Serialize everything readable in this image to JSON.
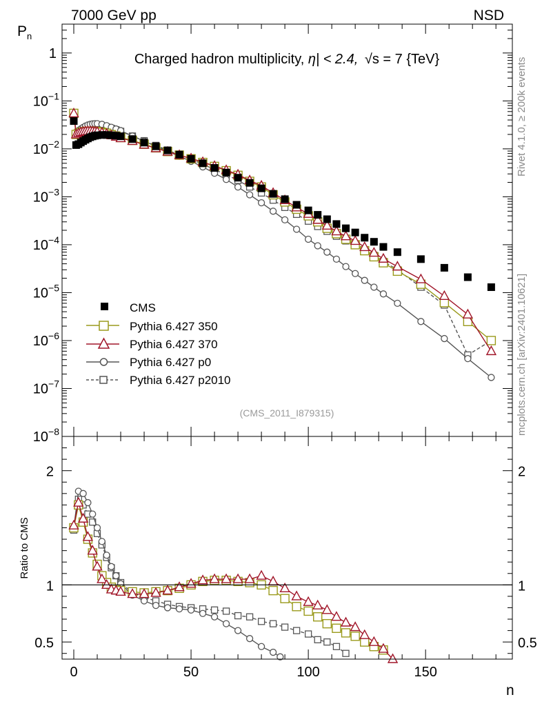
{
  "header": {
    "left": "7000 GeV pp",
    "right": "NSD"
  },
  "side_labels": {
    "rivet": "Rivet 4.1.0, ≥ 200k events",
    "mcplots": "mcplots.cern.ch [arXiv:2401.10621]"
  },
  "chart_data": [
    {
      "type": "scatter",
      "panel": "main",
      "title": "Charged hadron multiplicity, |η| < 2.4, √s = 7 {TeV}",
      "title_parts": [
        "Charged hadron multiplicity, ",
        "η| < 2.4, ",
        "s = 7 {TeV}"
      ],
      "ylabel": "P",
      "ylabel_sub": "n",
      "xlabel": "",
      "yscale": "log",
      "ylim": [
        1e-08,
        4
      ],
      "xlim": [
        -5,
        187
      ],
      "y_ticks": [
        {
          "value": 1,
          "label": "1"
        },
        {
          "value": 0.1,
          "base": "10",
          "exp": "−1"
        },
        {
          "value": 0.01,
          "base": "10",
          "exp": "−2"
        },
        {
          "value": 0.001,
          "base": "10",
          "exp": "−3"
        },
        {
          "value": 0.0001,
          "base": "10",
          "exp": "−4"
        },
        {
          "value": 1e-05,
          "base": "10",
          "exp": "−5"
        },
        {
          "value": 1e-06,
          "base": "10",
          "exp": "−6"
        },
        {
          "value": 1e-07,
          "base": "10",
          "exp": "−7"
        },
        {
          "value": 1e-08,
          "base": "10",
          "exp": "−8"
        }
      ],
      "watermark": "(CMS_2011_I879315)",
      "legend": [
        "CMS",
        "Pythia 6.427 350",
        "Pythia 6.427 370",
        "Pythia 6.427 p0",
        "Pythia 6.427 p2010"
      ],
      "series": [
        {
          "name": "CMS",
          "style": "data",
          "color": "#000000",
          "x": [
            0,
            1,
            2,
            3,
            4,
            5,
            6,
            7,
            8,
            9,
            10,
            12,
            14,
            16,
            18,
            20,
            25,
            30,
            35,
            40,
            45,
            50,
            55,
            60,
            65,
            70,
            75,
            80,
            85,
            90,
            95,
            100,
            104,
            108,
            112,
            116,
            120,
            124,
            128,
            132,
            138,
            148,
            158,
            168,
            178
          ],
          "y": [
            0.038,
            0.012,
            0.0125,
            0.0135,
            0.0145,
            0.0155,
            0.0165,
            0.0175,
            0.0182,
            0.0188,
            0.0192,
            0.0195,
            0.0195,
            0.0192,
            0.0188,
            0.0183,
            0.016,
            0.0135,
            0.0113,
            0.0093,
            0.0076,
            0.0062,
            0.005,
            0.004,
            0.0032,
            0.0025,
            0.00195,
            0.0015,
            0.00115,
            0.00089,
            0.00068,
            0.00052,
            0.00042,
            0.00034,
            0.00027,
            0.00022,
            0.00018,
            0.00014,
            0.000115,
            9e-05,
            7e-05,
            5e-05,
            3.3e-05,
            2.1e-05,
            1.3e-05
          ]
        },
        {
          "name": "Pythia 6.427 350",
          "style": "open-square",
          "color": "#9a9a1c",
          "x": [
            0,
            1,
            2,
            3,
            4,
            5,
            6,
            7,
            8,
            9,
            10,
            12,
            14,
            16,
            18,
            20,
            25,
            30,
            35,
            40,
            45,
            50,
            55,
            60,
            65,
            70,
            75,
            80,
            85,
            90,
            95,
            100,
            104,
            108,
            112,
            116,
            120,
            124,
            128,
            132,
            138,
            148,
            158,
            168,
            178
          ],
          "y": [
            0.055,
            0.02,
            0.021,
            0.022,
            0.0225,
            0.023,
            0.0232,
            0.0233,
            0.0232,
            0.023,
            0.0228,
            0.0222,
            0.0212,
            0.0198,
            0.0185,
            0.0172,
            0.015,
            0.0125,
            0.0105,
            0.0088,
            0.0074,
            0.0062,
            0.0052,
            0.0043,
            0.0035,
            0.0028,
            0.0021,
            0.0016,
            0.0011,
            0.00078,
            0.00055,
            0.0004,
            0.0003,
            0.00022,
            0.00017,
            0.00013,
            0.0001,
            7.5e-05,
            5.6e-05,
            4.2e-05,
            2.8e-05,
            1.5e-05,
            6.2e-06,
            2.5e-06,
            1e-06
          ]
        },
        {
          "name": "Pythia 6.427 370",
          "style": "open-triangle",
          "color": "#a01528",
          "x": [
            0,
            1,
            2,
            3,
            4,
            5,
            6,
            7,
            8,
            9,
            10,
            12,
            14,
            16,
            18,
            20,
            25,
            30,
            35,
            40,
            45,
            50,
            55,
            60,
            65,
            70,
            75,
            80,
            85,
            90,
            95,
            100,
            104,
            108,
            112,
            116,
            120,
            124,
            128,
            132,
            138,
            148,
            158,
            168,
            178
          ],
          "y": [
            0.055,
            0.02,
            0.0212,
            0.0222,
            0.0228,
            0.0232,
            0.0234,
            0.0234,
            0.0232,
            0.023,
            0.0227,
            0.0218,
            0.0206,
            0.0192,
            0.0179,
            0.0167,
            0.0146,
            0.0122,
            0.0103,
            0.0087,
            0.0074,
            0.0063,
            0.0053,
            0.0044,
            0.0036,
            0.0029,
            0.0022,
            0.0017,
            0.0012,
            0.00085,
            0.0006,
            0.00044,
            0.00033,
            0.00025,
            0.00019,
            0.00015,
            0.00012,
            8.9e-05,
            6.8e-05,
            5.1e-05,
            3.5e-05,
            1.9e-05,
            8.5e-06,
            3.5e-06,
            6e-07
          ]
        },
        {
          "name": "Pythia 6.427 p0",
          "style": "open-circle",
          "color": "#555555",
          "x": [
            0,
            1,
            2,
            3,
            4,
            5,
            6,
            7,
            8,
            9,
            10,
            12,
            14,
            16,
            18,
            20,
            25,
            30,
            35,
            40,
            45,
            50,
            55,
            60,
            65,
            70,
            75,
            80,
            85,
            90,
            95,
            100,
            104,
            108,
            112,
            116,
            120,
            124,
            128,
            132,
            138,
            148,
            158,
            168,
            178
          ],
          "y": [
            0.055,
            0.022,
            0.024,
            0.026,
            0.028,
            0.03,
            0.0315,
            0.0325,
            0.0332,
            0.0335,
            0.0335,
            0.0325,
            0.0305,
            0.0282,
            0.026,
            0.024,
            0.0185,
            0.0145,
            0.0113,
            0.0089,
            0.007,
            0.0055,
            0.0042,
            0.0031,
            0.0023,
            0.0016,
            0.0011,
            0.00075,
            0.0005,
            0.00033,
            0.00021,
            0.00013,
            9.5e-05,
            7e-05,
            5e-05,
            3.5e-05,
            2.5e-05,
            1.8e-05,
            1.3e-05,
            9.4e-06,
            6e-06,
            2.5e-06,
            1.1e-06,
            4.2e-07,
            1.7e-07
          ]
        },
        {
          "name": "Pythia 6.427 p2010",
          "style": "open-square-dashed",
          "color": "#555555",
          "x": [
            0,
            1,
            2,
            3,
            4,
            5,
            6,
            7,
            8,
            9,
            10,
            12,
            14,
            16,
            18,
            20,
            25,
            30,
            35,
            40,
            45,
            50,
            55,
            60,
            65,
            70,
            75,
            80,
            85,
            90,
            95,
            100,
            104,
            108,
            112,
            116,
            120,
            124,
            128,
            132,
            138,
            148,
            158,
            168,
            178
          ],
          "y": [
            0.05,
            0.02,
            0.022,
            0.024,
            0.026,
            0.0275,
            0.029,
            0.03,
            0.0305,
            0.0308,
            0.0308,
            0.03,
            0.0285,
            0.0268,
            0.025,
            0.0232,
            0.0185,
            0.0148,
            0.0118,
            0.0094,
            0.0075,
            0.006,
            0.0048,
            0.0037,
            0.0029,
            0.0022,
            0.0016,
            0.0012,
            0.00085,
            0.0006,
            0.00043,
            0.00031,
            0.00024,
            0.00019,
            0.00015,
            0.00012,
            9.7e-05,
            7.5e-05,
            6e-05,
            4.5e-05,
            3e-05,
            1.3e-05,
            5.5e-06,
            5e-07,
            1e-06
          ]
        }
      ]
    },
    {
      "type": "line",
      "panel": "ratio",
      "title": "",
      "ylabel": "Ratio to CMS",
      "xlabel": "n",
      "ylim": [
        0.35,
        2.3
      ],
      "xlim": [
        -5,
        187
      ],
      "y_ticks": [
        0.5,
        1,
        2
      ],
      "y_tick_labels": [
        "0.5",
        "1",
        "2"
      ],
      "x_ticks": [
        0,
        50,
        100,
        150
      ],
      "x_tick_labels": [
        "0",
        "50",
        "100",
        "150"
      ],
      "reference": 1,
      "series": [
        {
          "name": "Pythia 6.427 350",
          "style": "open-square",
          "color": "#9a9a1c",
          "x": [
            0,
            2,
            4,
            6,
            8,
            10,
            12,
            14,
            16,
            18,
            20,
            25,
            30,
            35,
            40,
            45,
            50,
            55,
            60,
            65,
            70,
            75,
            80,
            85,
            90,
            95,
            100,
            104,
            108,
            112,
            116,
            120,
            124,
            128,
            132
          ],
          "y": [
            1.5,
            1.7,
            1.55,
            1.4,
            1.28,
            1.18,
            1.08,
            1.02,
            0.98,
            0.96,
            0.95,
            0.94,
            0.93,
            0.94,
            0.95,
            0.97,
            1.0,
            1.03,
            1.04,
            1.04,
            1.03,
            1.02,
            1.0,
            0.95,
            0.88,
            0.81,
            0.77,
            0.72,
            0.66,
            0.62,
            0.58,
            0.55,
            0.5,
            0.46,
            0.43
          ]
        },
        {
          "name": "Pythia 6.427 370",
          "style": "open-triangle",
          "color": "#a01528",
          "x": [
            0,
            2,
            4,
            6,
            8,
            10,
            12,
            14,
            16,
            18,
            20,
            25,
            30,
            35,
            40,
            45,
            50,
            55,
            60,
            65,
            70,
            75,
            80,
            85,
            90,
            95,
            100,
            104,
            108,
            112,
            116,
            120,
            124,
            128,
            132,
            136
          ],
          "y": [
            1.52,
            1.72,
            1.58,
            1.42,
            1.3,
            1.16,
            1.05,
            1.0,
            0.96,
            0.95,
            0.94,
            0.92,
            0.92,
            0.93,
            0.95,
            0.98,
            1.01,
            1.04,
            1.05,
            1.05,
            1.05,
            1.05,
            1.08,
            1.03,
            0.97,
            0.9,
            0.85,
            0.82,
            0.78,
            0.72,
            0.67,
            0.63,
            0.56,
            0.5,
            0.44,
            0.35
          ]
        },
        {
          "name": "Pythia 6.427 p0",
          "style": "open-circle",
          "color": "#555555",
          "x": [
            0,
            2,
            4,
            6,
            8,
            10,
            12,
            14,
            16,
            18,
            20,
            25,
            30,
            35,
            40,
            45,
            50,
            55,
            60,
            65,
            70,
            75,
            80,
            85,
            88
          ],
          "y": [
            1.5,
            1.82,
            1.8,
            1.72,
            1.62,
            1.5,
            1.38,
            1.26,
            1.16,
            1.08,
            1.01,
            0.91,
            0.86,
            0.82,
            0.8,
            0.79,
            0.78,
            0.75,
            0.72,
            0.66,
            0.6,
            0.53,
            0.46,
            0.41,
            0.37
          ]
        },
        {
          "name": "Pythia 6.427 p2010",
          "style": "open-square-dashed",
          "color": "#555555",
          "x": [
            0,
            2,
            4,
            6,
            8,
            10,
            12,
            14,
            16,
            18,
            20,
            25,
            30,
            35,
            40,
            45,
            50,
            55,
            60,
            65,
            70,
            75,
            80,
            85,
            90,
            95,
            100,
            104,
            108,
            112,
            116
          ],
          "y": [
            1.48,
            1.75,
            1.7,
            1.62,
            1.55,
            1.45,
            1.35,
            1.24,
            1.15,
            1.08,
            1.02,
            0.93,
            0.89,
            0.86,
            0.83,
            0.81,
            0.8,
            0.79,
            0.78,
            0.77,
            0.73,
            0.72,
            0.68,
            0.66,
            0.63,
            0.6,
            0.57,
            0.52,
            0.5,
            0.46,
            0.4
          ]
        }
      ]
    }
  ]
}
